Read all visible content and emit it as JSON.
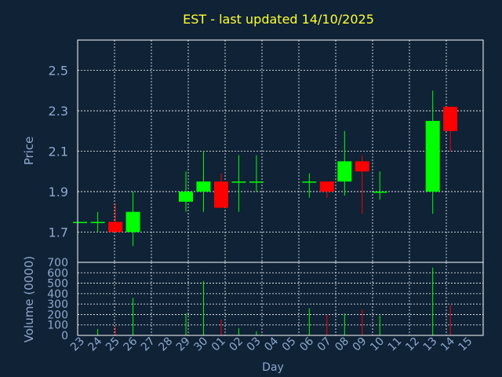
{
  "colors": {
    "background": "#0f2236",
    "title": "#ffff33",
    "axis_text": "#8fa8cc",
    "frame": "#ffffff",
    "grid": "#ffffff",
    "up": "#00ff00",
    "down": "#ff0000"
  },
  "chart_data": [
    {
      "type": "candlestick",
      "title": "EST - last updated 14/10/2025",
      "ylabel": "Price",
      "ylim": [
        1.55,
        2.65
      ],
      "yticks": [
        "1.7",
        "1.9",
        "2.1",
        "2.3",
        "2.5"
      ],
      "ytick_values": [
        1.7,
        1.9,
        2.1,
        2.3,
        2.5
      ],
      "grid": true,
      "x_labels": [
        "23",
        "24",
        "25",
        "26",
        "27",
        "28",
        "29",
        "30",
        "01",
        "02",
        "03",
        "04",
        "05",
        "06",
        "07",
        "08",
        "09",
        "10",
        "11",
        "12",
        "13",
        "14",
        "15"
      ],
      "candles": [
        {
          "x": 0,
          "open": 1.75,
          "high": 1.75,
          "low": 1.75,
          "close": 1.75
        },
        {
          "x": 1,
          "open": 1.75,
          "high": 1.8,
          "low": 1.7,
          "close": 1.75
        },
        {
          "x": 2,
          "open": 1.75,
          "high": 1.84,
          "low": 1.7,
          "close": 1.7
        },
        {
          "x": 3,
          "open": 1.7,
          "high": 1.9,
          "low": 1.63,
          "close": 1.8
        },
        {
          "x": 6,
          "open": 1.85,
          "high": 2.0,
          "low": 1.8,
          "close": 1.9
        },
        {
          "x": 7,
          "open": 1.9,
          "high": 2.1,
          "low": 1.8,
          "close": 1.95
        },
        {
          "x": 8,
          "open": 1.95,
          "high": 1.99,
          "low": 1.82,
          "close": 1.82
        },
        {
          "x": 9,
          "open": 1.95,
          "high": 2.08,
          "low": 1.8,
          "close": 1.95
        },
        {
          "x": 10,
          "open": 1.95,
          "high": 2.08,
          "low": 1.9,
          "close": 1.95
        },
        {
          "x": 13,
          "open": 1.95,
          "high": 1.99,
          "low": 1.87,
          "close": 1.95
        },
        {
          "x": 14,
          "open": 1.95,
          "high": 1.95,
          "low": 1.87,
          "close": 1.9
        },
        {
          "x": 15,
          "open": 1.95,
          "high": 2.2,
          "low": 1.88,
          "close": 2.05
        },
        {
          "x": 16,
          "open": 2.05,
          "high": 2.08,
          "low": 1.79,
          "close": 2.0
        },
        {
          "x": 17,
          "open": 1.9,
          "high": 2.0,
          "low": 1.86,
          "close": 1.9
        },
        {
          "x": 20,
          "open": 1.9,
          "high": 2.4,
          "low": 1.79,
          "close": 2.25
        },
        {
          "x": 21,
          "open": 2.32,
          "high": 2.32,
          "low": 2.1,
          "close": 2.2
        }
      ]
    },
    {
      "type": "bar",
      "ylabel": "Volume (0000)",
      "xlabel": "Day",
      "ylim": [
        0,
        700
      ],
      "yticks": [
        "0",
        "100",
        "200",
        "300",
        "400",
        "500",
        "600",
        "700"
      ],
      "ytick_values": [
        0,
        100,
        200,
        300,
        400,
        500,
        600,
        700
      ],
      "categories": [
        "23",
        "24",
        "25",
        "26",
        "27",
        "28",
        "29",
        "30",
        "01",
        "02",
        "03",
        "04",
        "05",
        "06",
        "07",
        "08",
        "09",
        "10",
        "11",
        "12",
        "13",
        "14",
        "15"
      ],
      "values": [
        0,
        60,
        80,
        360,
        0,
        0,
        210,
        520,
        150,
        70,
        40,
        0,
        0,
        260,
        200,
        210,
        250,
        190,
        0,
        0,
        650,
        290,
        0
      ],
      "directions": [
        "up",
        "up",
        "down",
        "up",
        "none",
        "none",
        "up",
        "up",
        "down",
        "up",
        "up",
        "none",
        "none",
        "up",
        "down",
        "up",
        "down",
        "up",
        "none",
        "none",
        "up",
        "down",
        "none"
      ]
    }
  ]
}
